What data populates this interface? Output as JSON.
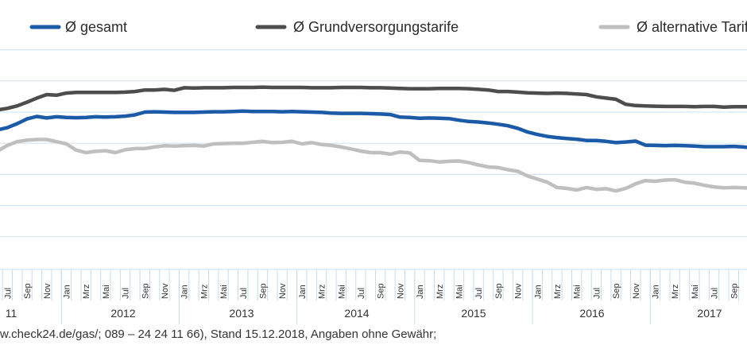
{
  "chart_data": {
    "type": "line",
    "title": "",
    "xlabel": "",
    "ylabel": "",
    "ylim": [
      0,
      7
    ],
    "grid": true,
    "legend_position": "top",
    "x_start": "2011-06",
    "month_labels": [
      "Jul",
      "Sep",
      "Nov",
      "Jan",
      "Mrz",
      "Mai",
      "Jul",
      "Sep",
      "Nov",
      "Jan",
      "Mrz",
      "Mai",
      "Jul",
      "Sep",
      "Nov",
      "Jan",
      "Mrz",
      "Mai",
      "Jul",
      "Sep",
      "Nov",
      "Jan",
      "Mrz",
      "Mai",
      "Jul",
      "Sep",
      "Nov",
      "Jan",
      "Mrz",
      "Mai",
      "Jul",
      "Sep",
      "Nov",
      "Jan",
      "Mrz",
      "Mai",
      "Jul",
      "Sep"
    ],
    "year_labels": [
      "11",
      "2012",
      "2013",
      "2014",
      "2015",
      "2016",
      "2017"
    ],
    "series": [
      {
        "name": "Ø gesamt",
        "color": "#1a5aa6",
        "values": [
          4.43,
          4.5,
          4.63,
          4.78,
          4.86,
          4.81,
          4.85,
          4.83,
          4.82,
          4.83,
          4.85,
          4.84,
          4.85,
          4.87,
          4.91,
          5.0,
          5.01,
          5.0,
          4.99,
          4.99,
          4.99,
          5.0,
          5.01,
          5.01,
          5.02,
          5.03,
          5.02,
          5.02,
          5.02,
          5.01,
          5.02,
          5.01,
          5.0,
          4.99,
          4.97,
          4.96,
          4.96,
          4.96,
          4.95,
          4.94,
          4.92,
          4.84,
          4.83,
          4.8,
          4.81,
          4.8,
          4.79,
          4.74,
          4.7,
          4.68,
          4.65,
          4.61,
          4.56,
          4.48,
          4.36,
          4.28,
          4.22,
          4.18,
          4.15,
          4.13,
          4.09,
          4.09,
          4.06,
          4.02,
          4.04,
          4.07,
          3.94,
          3.93,
          3.92,
          3.93,
          3.92,
          3.91,
          3.89,
          3.89,
          3.89,
          3.9,
          3.88,
          3.85,
          3.8
        ]
      },
      {
        "name": "Ø Grundversorgungstarife",
        "color": "#4d4d4d",
        "values": [
          5.07,
          5.12,
          5.2,
          5.32,
          5.45,
          5.56,
          5.54,
          5.61,
          5.63,
          5.63,
          5.63,
          5.63,
          5.63,
          5.64,
          5.66,
          5.71,
          5.71,
          5.73,
          5.7,
          5.78,
          5.77,
          5.78,
          5.78,
          5.78,
          5.79,
          5.79,
          5.79,
          5.8,
          5.79,
          5.79,
          5.79,
          5.79,
          5.78,
          5.78,
          5.78,
          5.79,
          5.79,
          5.79,
          5.78,
          5.78,
          5.77,
          5.76,
          5.75,
          5.75,
          5.75,
          5.76,
          5.76,
          5.76,
          5.75,
          5.73,
          5.71,
          5.66,
          5.66,
          5.64,
          5.62,
          5.61,
          5.6,
          5.61,
          5.6,
          5.58,
          5.56,
          5.49,
          5.45,
          5.41,
          5.25,
          5.21,
          5.2,
          5.19,
          5.18,
          5.18,
          5.18,
          5.17,
          5.18,
          5.18,
          5.16,
          5.17,
          5.17,
          5.17,
          5.16
        ]
      },
      {
        "name": "Ø alternative Tarife",
        "color": "#bfbfbf",
        "values": [
          3.75,
          3.93,
          4.05,
          4.1,
          4.12,
          4.12,
          4.05,
          3.98,
          3.78,
          3.7,
          3.74,
          3.76,
          3.7,
          3.79,
          3.83,
          3.83,
          3.88,
          3.92,
          3.91,
          3.92,
          3.93,
          3.91,
          3.98,
          3.99,
          4.0,
          4.0,
          4.03,
          4.06,
          4.02,
          4.03,
          4.06,
          3.98,
          4.02,
          3.96,
          3.93,
          3.88,
          3.82,
          3.75,
          3.7,
          3.7,
          3.65,
          3.72,
          3.69,
          3.45,
          3.44,
          3.4,
          3.42,
          3.43,
          3.38,
          3.3,
          3.24,
          3.22,
          3.15,
          3.1,
          2.95,
          2.85,
          2.75,
          2.58,
          2.55,
          2.5,
          2.58,
          2.52,
          2.54,
          2.47,
          2.55,
          2.7,
          2.8,
          2.78,
          2.82,
          2.83,
          2.75,
          2.72,
          2.65,
          2.6,
          2.57,
          2.58,
          2.57,
          2.55,
          2.53
        ]
      }
    ]
  },
  "source_text": "w.check24.de/gas/; 089 – 24 24 11 66), Stand 15.12.2018, Angaben ohne Gewähr;"
}
